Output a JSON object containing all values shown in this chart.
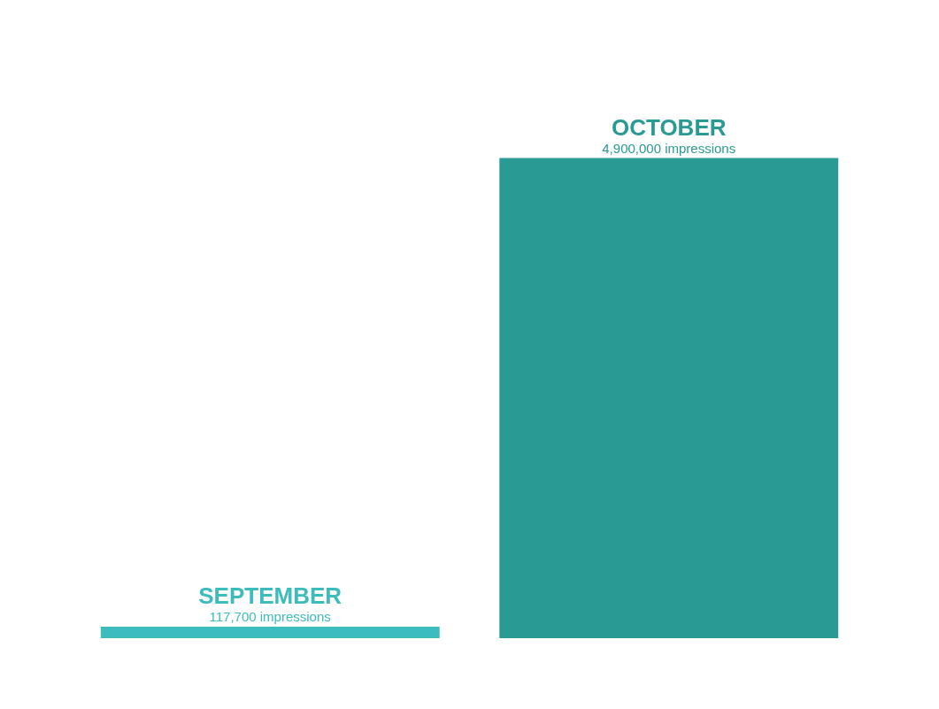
{
  "chart_data": {
    "type": "bar",
    "categories": [
      "SEPTEMBER",
      "OCTOBER"
    ],
    "values": [
      117700,
      4900000
    ],
    "colors": [
      "#3cbcbc",
      "#2a9a94"
    ],
    "value_labels": [
      "117,700 impressions",
      "4,900,000 impressions"
    ],
    "legend": false
  }
}
